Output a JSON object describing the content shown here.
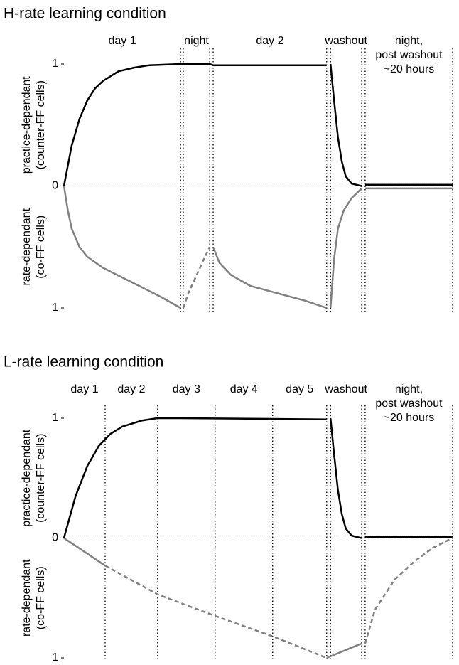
{
  "chart_data": [
    {
      "type": "line",
      "title": "H-rate learning condition",
      "ylabel_upper": [
        "practice-dependant",
        "(counter-FF cells)"
      ],
      "ylabel_lower": [
        "rate-dependant",
        "(co-FF cells)"
      ],
      "xlim": [
        0,
        100
      ],
      "ylim": [
        -1,
        1
      ],
      "yticks": [
        1,
        0,
        {
          "value": -1,
          "label": "1"
        }
      ],
      "boundaries": [
        30.0,
        30.7,
        37.5,
        38.4,
        67.6,
        68.6,
        76.6,
        77.5,
        100
      ],
      "phases": [
        {
          "label": [
            "day 1"
          ],
          "start": 0,
          "end": 30.0
        },
        {
          "label": [
            "night"
          ],
          "start": 30.7,
          "end": 37.5
        },
        {
          "label": [
            "day 2"
          ],
          "start": 38.4,
          "end": 67.6
        },
        {
          "label": [
            "washout"
          ],
          "start": 68.6,
          "end": 76.6
        },
        {
          "label": [
            "night,",
            "post washout",
            "~20 hours"
          ],
          "start": 77.5,
          "end": 100
        }
      ],
      "series": [
        {
          "color": "#000000",
          "dash": false,
          "x": [
            0,
            2,
            4,
            6,
            8,
            10,
            14,
            18,
            22,
            26,
            30,
            30.7,
            37.5,
            38.4,
            67.6,
            null,
            68.6,
            69.5,
            70.5,
            71.5,
            72.5,
            74,
            76.6,
            null,
            77.5,
            100
          ],
          "values": [
            0,
            0.33,
            0.55,
            0.7,
            0.8,
            0.86,
            0.94,
            0.97,
            0.99,
            0.995,
            1,
            1,
            1,
            0.99,
            0.99,
            null,
            1,
            0.7,
            0.4,
            0.2,
            0.08,
            0.02,
            0,
            null,
            0.01,
            0.01
          ]
        },
        {
          "color": "#808080",
          "dash": false,
          "x": [
            0,
            1,
            2,
            4,
            6,
            10,
            15,
            20,
            25,
            30,
            null,
            38.4,
            40,
            43,
            48,
            55,
            62,
            67.6,
            null,
            68.6,
            69.5,
            70.5,
            72,
            74,
            76.6,
            null,
            77.5,
            100
          ],
          "values": [
            0,
            -0.2,
            -0.35,
            -0.5,
            -0.58,
            -0.67,
            -0.75,
            -0.83,
            -0.91,
            -1,
            null,
            -0.5,
            -0.63,
            -0.73,
            -0.82,
            -0.88,
            -0.94,
            -1,
            null,
            -1,
            -0.6,
            -0.35,
            -0.2,
            -0.1,
            -0.02,
            null,
            -0.02,
            -0.02
          ]
        },
        {
          "color": "#808080",
          "dash": true,
          "x": [
            30.7,
            32,
            34,
            36,
            37.5
          ],
          "values": [
            -1,
            -0.88,
            -0.74,
            -0.6,
            -0.5
          ]
        }
      ]
    },
    {
      "type": "line",
      "title": "L-rate learning condition",
      "ylabel_upper": [
        "practice-dependant",
        "(counter-FF cells)"
      ],
      "ylabel_lower": [
        "rate-dependant",
        "(co-FF cells)"
      ],
      "xlim": [
        0,
        100
      ],
      "ylim": [
        -1,
        1
      ],
      "yticks": [
        1,
        0,
        {
          "value": -1,
          "label": "1"
        }
      ],
      "boundaries": [
        10.6,
        24.1,
        38.9,
        53.7,
        67.6,
        68.6,
        76.6,
        77.5,
        100
      ],
      "phases": [
        {
          "label": [
            "day 1"
          ],
          "start": 0,
          "end": 10.6
        },
        {
          "label": [
            "day 2"
          ],
          "start": 10.6,
          "end": 24.1
        },
        {
          "label": [
            "day 3"
          ],
          "start": 24.1,
          "end": 38.9
        },
        {
          "label": [
            "day 4"
          ],
          "start": 38.9,
          "end": 53.7
        },
        {
          "label": [
            "day 5"
          ],
          "start": 53.7,
          "end": 67.6
        },
        {
          "label": [
            "washout"
          ],
          "start": 68.6,
          "end": 76.6
        },
        {
          "label": [
            "night,",
            "post washout",
            "~20 hours"
          ],
          "start": 77.5,
          "end": 100
        }
      ],
      "series": [
        {
          "color": "#000000",
          "dash": false,
          "x": [
            0,
            3,
            6,
            9,
            12,
            15,
            20,
            24,
            30,
            67.6,
            null,
            68.6,
            69.5,
            70.5,
            71.5,
            72.5,
            74,
            76.6,
            null,
            77.5,
            100
          ],
          "values": [
            0,
            0.35,
            0.6,
            0.77,
            0.87,
            0.93,
            0.98,
            1,
            1,
            0.99,
            null,
            1,
            0.7,
            0.4,
            0.2,
            0.08,
            0.02,
            0,
            null,
            0.01,
            0.01
          ]
        },
        {
          "color": "#808080",
          "dash": false,
          "x": [
            0,
            10.6,
            null,
            67.6,
            76.6
          ],
          "values": [
            0,
            -0.23,
            null,
            -1,
            -0.88
          ]
        },
        {
          "color": "#808080",
          "dash": true,
          "x": [
            10.6,
            24.1,
            38.9,
            53.7,
            67.6,
            null,
            77.5,
            80,
            85,
            90,
            95,
            100
          ],
          "values": [
            -0.23,
            -0.47,
            -0.65,
            -0.82,
            -1,
            null,
            -0.88,
            -0.6,
            -0.35,
            -0.2,
            -0.08,
            0
          ]
        }
      ]
    }
  ]
}
